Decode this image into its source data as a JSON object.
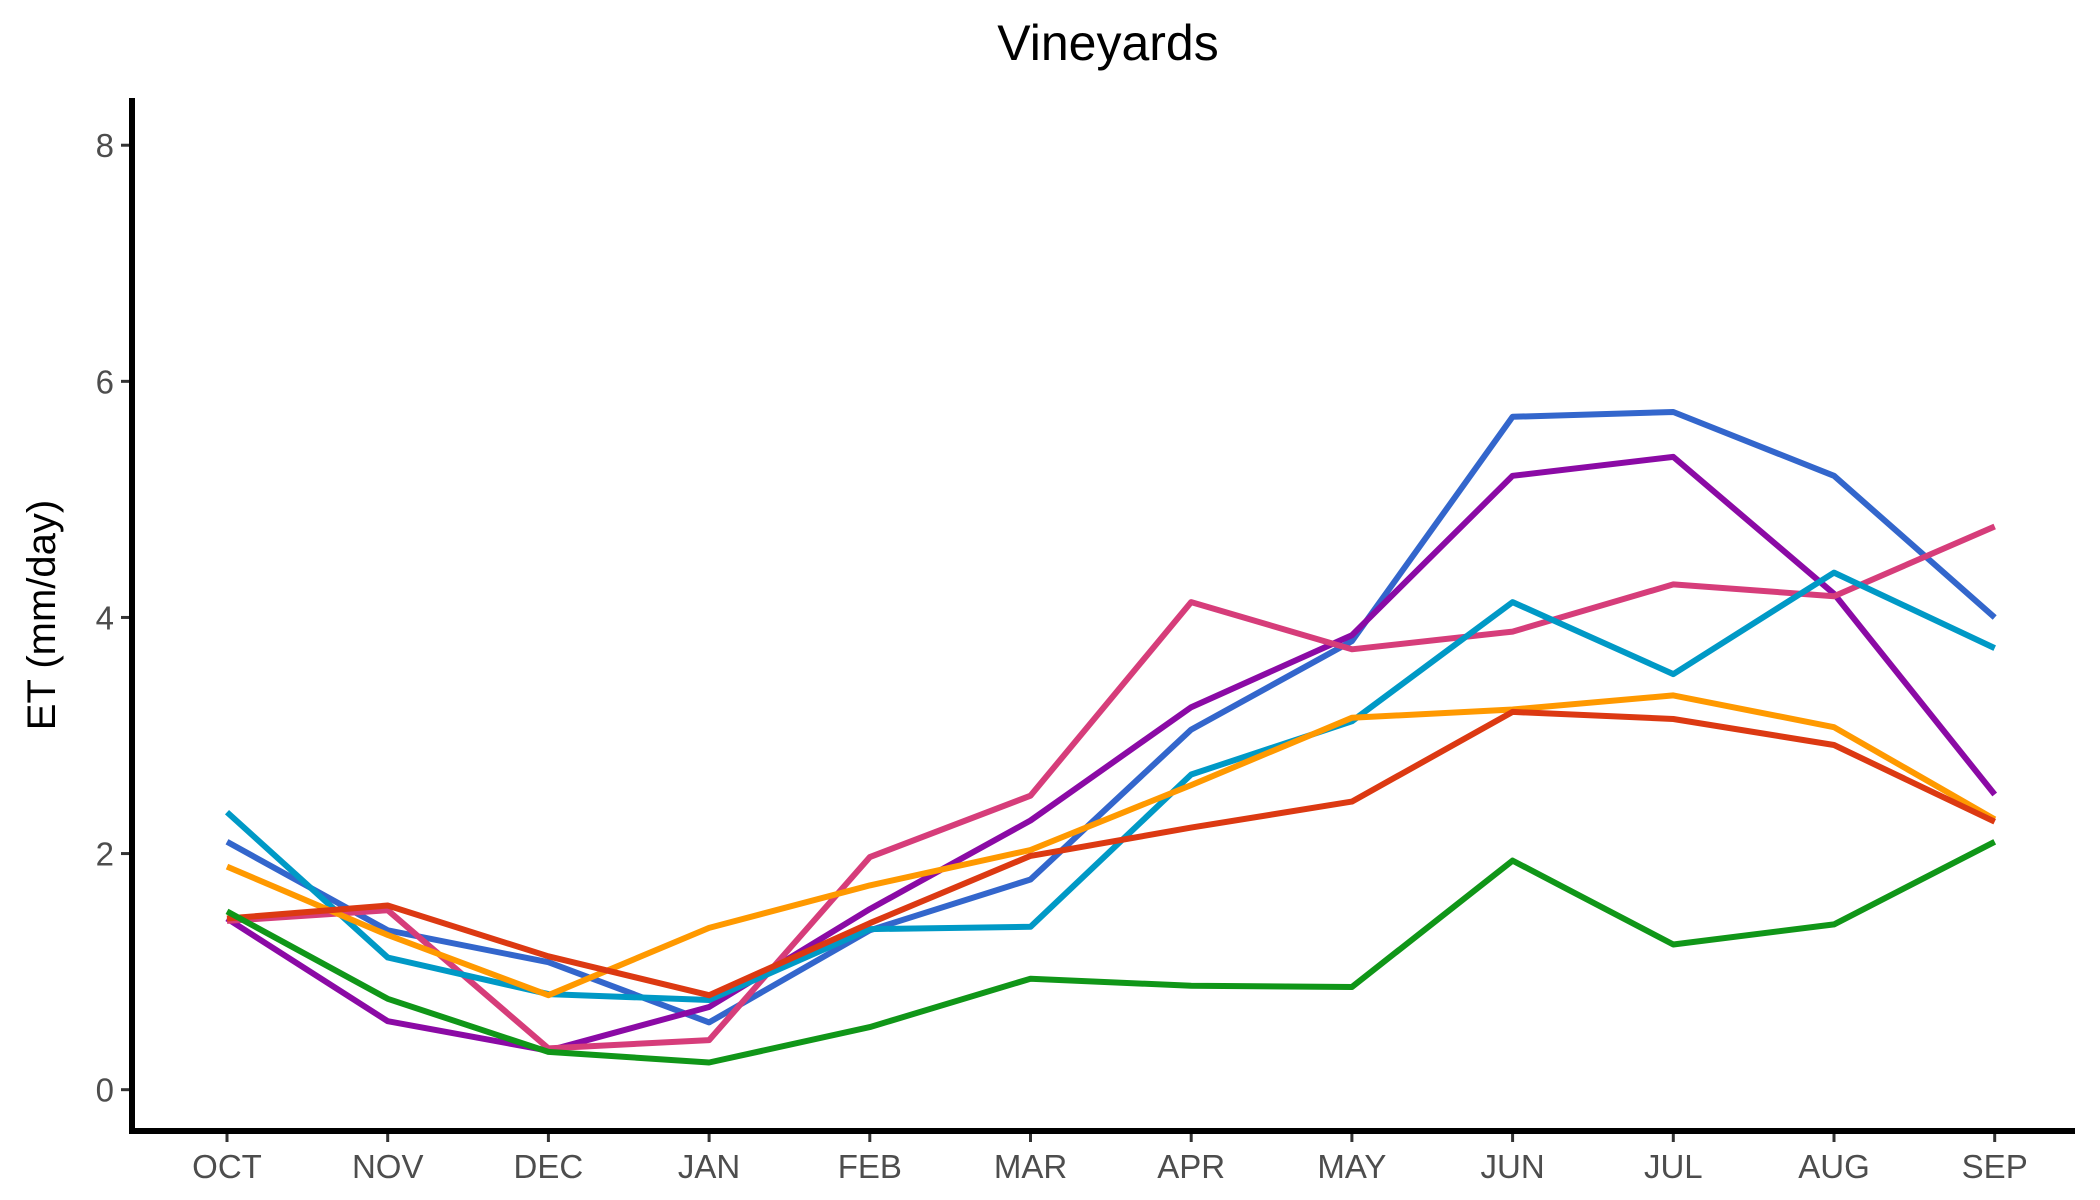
{
  "chart_data": {
    "type": "line",
    "title": "Vineyards",
    "xlabel": "",
    "ylabel": "ET (mm/day)",
    "categories": [
      "OCT",
      "NOV",
      "DEC",
      "JAN",
      "FEB",
      "MAR",
      "APR",
      "MAY",
      "JUN",
      "JUL",
      "AUG",
      "SEP"
    ],
    "ylim": [
      -0.35,
      8.4
    ],
    "yticks": [
      0,
      2,
      4,
      6,
      8
    ],
    "grid": false,
    "legend": "none",
    "series": [
      {
        "color": "#3366cc",
        "values": [
          2.1,
          1.35,
          1.08,
          0.57,
          1.35,
          1.78,
          3.05,
          3.8,
          5.7,
          5.74,
          5.2,
          4.0
        ]
      },
      {
        "color": "#8b0aa5",
        "values": [
          1.45,
          0.58,
          0.33,
          0.7,
          1.53,
          2.28,
          3.24,
          3.85,
          5.2,
          5.36,
          4.2,
          2.5
        ]
      },
      {
        "color": "#d63d7a",
        "values": [
          1.43,
          1.52,
          0.35,
          0.42,
          1.97,
          2.49,
          4.13,
          3.73,
          3.88,
          4.28,
          4.18,
          4.77
        ]
      },
      {
        "color": "#0099c6",
        "values": [
          2.35,
          1.12,
          0.81,
          0.76,
          1.36,
          1.38,
          2.67,
          3.12,
          4.13,
          3.52,
          4.38,
          3.74
        ]
      },
      {
        "color": "#ff9900",
        "values": [
          1.89,
          1.31,
          0.8,
          1.37,
          1.73,
          2.03,
          2.58,
          3.15,
          3.22,
          3.34,
          3.07,
          2.29
        ]
      },
      {
        "color": "#dc3912",
        "values": [
          1.45,
          1.56,
          1.13,
          0.8,
          1.41,
          1.98,
          2.22,
          2.44,
          3.2,
          3.14,
          2.92,
          2.27
        ]
      },
      {
        "color": "#109618",
        "values": [
          1.51,
          0.77,
          0.32,
          0.23,
          0.53,
          0.94,
          0.88,
          0.87,
          1.94,
          1.23,
          1.4,
          2.1
        ]
      }
    ]
  }
}
